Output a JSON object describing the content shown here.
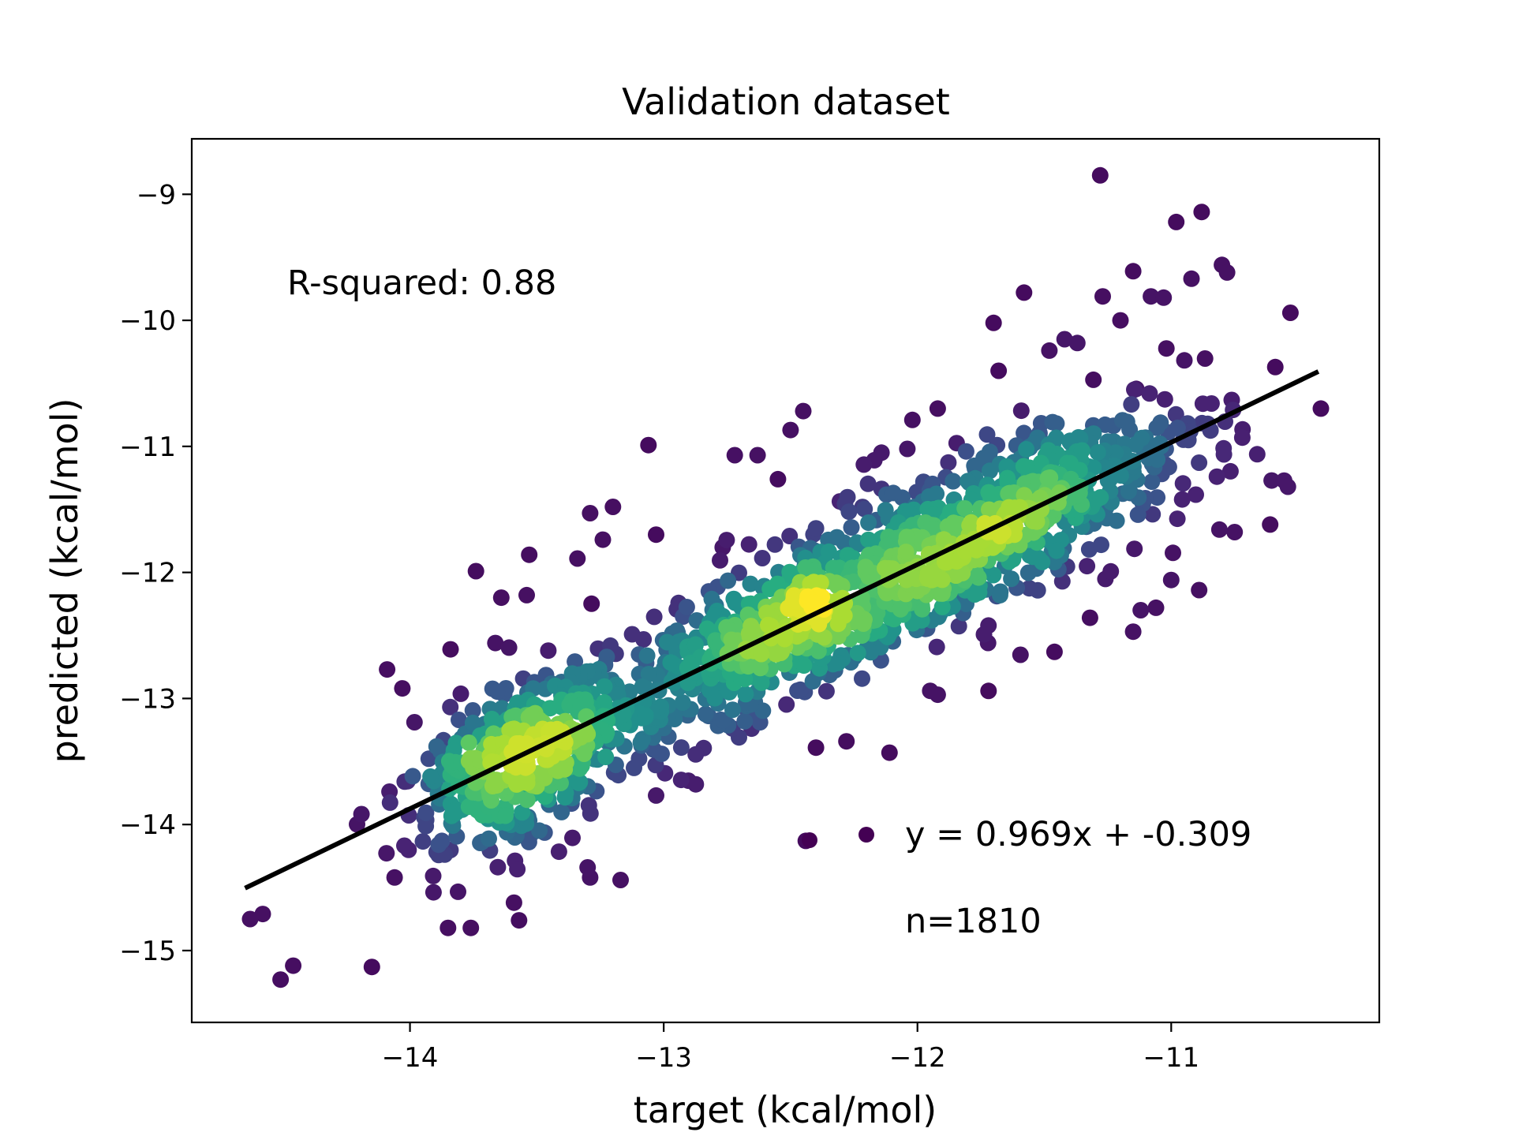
{
  "chart_data": {
    "type": "scatter",
    "title": "Validation dataset",
    "xlabel": "target (kcal/mol)",
    "ylabel": "predicted (kcal/mol)",
    "xlim": [
      -14.86,
      -10.18
    ],
    "ylim": [
      -15.57,
      -8.56
    ],
    "xticks": [
      -14,
      -13,
      -12,
      -11
    ],
    "yticks": [
      -15,
      -14,
      -13,
      -12,
      -11,
      -10,
      -9
    ],
    "grid": false,
    "colormap": "viridis",
    "n_points": 1810,
    "scatter_seed": 7,
    "fit": {
      "slope": 0.969,
      "intercept": -0.309,
      "x_range": [
        -14.65,
        -10.42
      ]
    },
    "annotations": {
      "r_squared": "R-squared: 0.88",
      "equation": "y = 0.969x + -0.309",
      "n": "n=1810"
    },
    "outliers": [
      [
        -11.28,
        -8.85
      ],
      [
        -10.88,
        -9.14
      ],
      [
        -10.98,
        -9.22
      ],
      [
        -10.8,
        -9.56
      ],
      [
        -10.78,
        -9.62
      ],
      [
        -11.15,
        -9.61
      ],
      [
        -10.92,
        -9.67
      ],
      [
        -11.58,
        -9.78
      ],
      [
        -11.27,
        -9.81
      ],
      [
        -11.08,
        -9.81
      ],
      [
        -11.03,
        -9.82
      ],
      [
        -11.7,
        -10.02
      ],
      [
        -11.2,
        -10.0
      ],
      [
        -10.53,
        -9.94
      ],
      [
        -11.42,
        -10.15
      ],
      [
        -11.37,
        -10.18
      ],
      [
        -11.48,
        -10.24
      ],
      [
        -10.41,
        -10.7
      ],
      [
        -11.68,
        -10.4
      ],
      [
        -12.45,
        -10.72
      ],
      [
        -12.5,
        -10.87
      ],
      [
        -13.06,
        -10.99
      ],
      [
        -12.72,
        -11.07
      ],
      [
        -12.63,
        -11.07
      ],
      [
        -12.4,
        -11.65
      ],
      [
        -12.55,
        -11.26
      ],
      [
        -12.02,
        -10.79
      ],
      [
        -11.92,
        -10.7
      ],
      [
        -12.04,
        -11.02
      ],
      [
        -12.17,
        -11.11
      ],
      [
        -13.03,
        -11.7
      ],
      [
        -13.2,
        -11.48
      ],
      [
        -13.29,
        -11.53
      ],
      [
        -13.24,
        -11.74
      ],
      [
        -13.53,
        -11.86
      ],
      [
        -13.34,
        -11.89
      ],
      [
        -13.74,
        -11.99
      ],
      [
        -13.54,
        -12.18
      ],
      [
        -13.64,
        -12.2
      ],
      [
        -12.42,
        -12.09
      ],
      [
        -14.09,
        -12.77
      ],
      [
        -14.03,
        -12.92
      ],
      [
        -13.84,
        -12.61
      ],
      [
        -14.58,
        -14.71
      ],
      [
        -14.51,
        -15.23
      ],
      [
        -14.15,
        -15.13
      ],
      [
        -14.63,
        -14.75
      ],
      [
        -14.46,
        -15.12
      ],
      [
        -13.85,
        -14.82
      ],
      [
        -13.76,
        -14.82
      ],
      [
        -13.57,
        -14.76
      ],
      [
        -13.59,
        -14.62
      ],
      [
        -13.3,
        -14.34
      ],
      [
        -13.29,
        -14.42
      ],
      [
        -13.17,
        -14.44
      ],
      [
        -12.11,
        -13.43
      ],
      [
        -12.28,
        -13.34
      ],
      [
        -12.4,
        -13.39
      ],
      [
        -11.92,
        -12.97
      ],
      [
        -11.72,
        -12.94
      ],
      [
        -11.46,
        -12.63
      ],
      [
        -11.32,
        -12.36
      ],
      [
        -11.12,
        -12.3
      ],
      [
        -11.15,
        -12.47
      ],
      [
        -11.06,
        -12.28
      ],
      [
        -10.89,
        -12.14
      ],
      [
        -11.0,
        -12.06
      ],
      [
        -10.61,
        -11.62
      ],
      [
        -10.75,
        -11.68
      ],
      [
        -10.81,
        -11.66
      ],
      [
        -10.54,
        -11.32
      ],
      [
        -11.16,
        -11.37
      ],
      [
        -10.82,
        -11.24
      ],
      [
        -12.44,
        -14.13
      ],
      [
        -13.03,
        -13.77
      ]
    ]
  }
}
